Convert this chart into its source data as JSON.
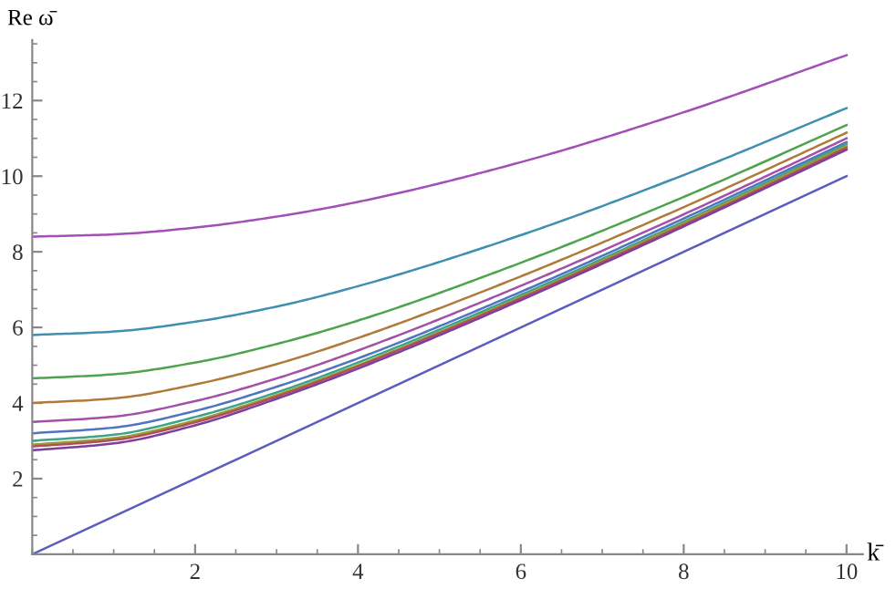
{
  "chart_data": {
    "type": "line",
    "xlabel": "k̄",
    "ylabel": "Re ω̄",
    "x": [
      0,
      1,
      2,
      3,
      4,
      6,
      8,
      10
    ],
    "series": [
      {
        "color": "#5b5bc0",
        "x": [
          0,
          10
        ],
        "values": [
          0,
          10
        ]
      },
      {
        "color": "#a34fb5",
        "values": [
          8.4,
          8.46,
          8.64,
          8.93,
          9.32,
          10.37,
          11.69,
          13.2
        ]
      },
      {
        "color": "#3f8fb0",
        "values": [
          5.8,
          5.89,
          6.15,
          6.55,
          7.09,
          8.44,
          10.03,
          11.8
        ]
      },
      {
        "color": "#4ea34e",
        "values": [
          4.65,
          4.76,
          5.07,
          5.56,
          6.18,
          7.71,
          9.45,
          11.35
        ]
      },
      {
        "color": "#b07a3a",
        "values": [
          4.0,
          4.12,
          4.49,
          5.03,
          5.72,
          7.35,
          9.18,
          11.15
        ]
      },
      {
        "color": "#a44fa8",
        "values": [
          3.5,
          3.64,
          4.05,
          4.65,
          5.39,
          7.1,
          8.99,
          11.0
        ]
      },
      {
        "color": "#4f74c0",
        "values": [
          3.2,
          3.35,
          3.79,
          4.43,
          5.18,
          6.94,
          8.88,
          10.9
        ]
      },
      {
        "color": "#3fa38a",
        "values": [
          3.0,
          3.16,
          3.63,
          4.28,
          5.07,
          6.86,
          8.8,
          10.85
        ]
      },
      {
        "color": "#9a9a3a",
        "values": [
          2.9,
          3.07,
          3.54,
          4.21,
          5.0,
          6.8,
          8.76,
          10.8
        ]
      },
      {
        "color": "#b0504f",
        "values": [
          2.85,
          3.02,
          3.49,
          4.17,
          4.97,
          6.77,
          8.71,
          10.75
        ]
      },
      {
        "color": "#7a3fa0",
        "values": [
          2.75,
          2.93,
          3.41,
          4.11,
          4.91,
          6.72,
          8.67,
          10.7
        ]
      }
    ],
    "xlim": [
      0,
      10.2
    ],
    "ylim": [
      0,
      13.6
    ],
    "xticks": [
      2,
      4,
      6,
      8,
      10
    ],
    "yticks": [
      2,
      4,
      6,
      8,
      10,
      12
    ],
    "grid": false,
    "legend": false
  }
}
